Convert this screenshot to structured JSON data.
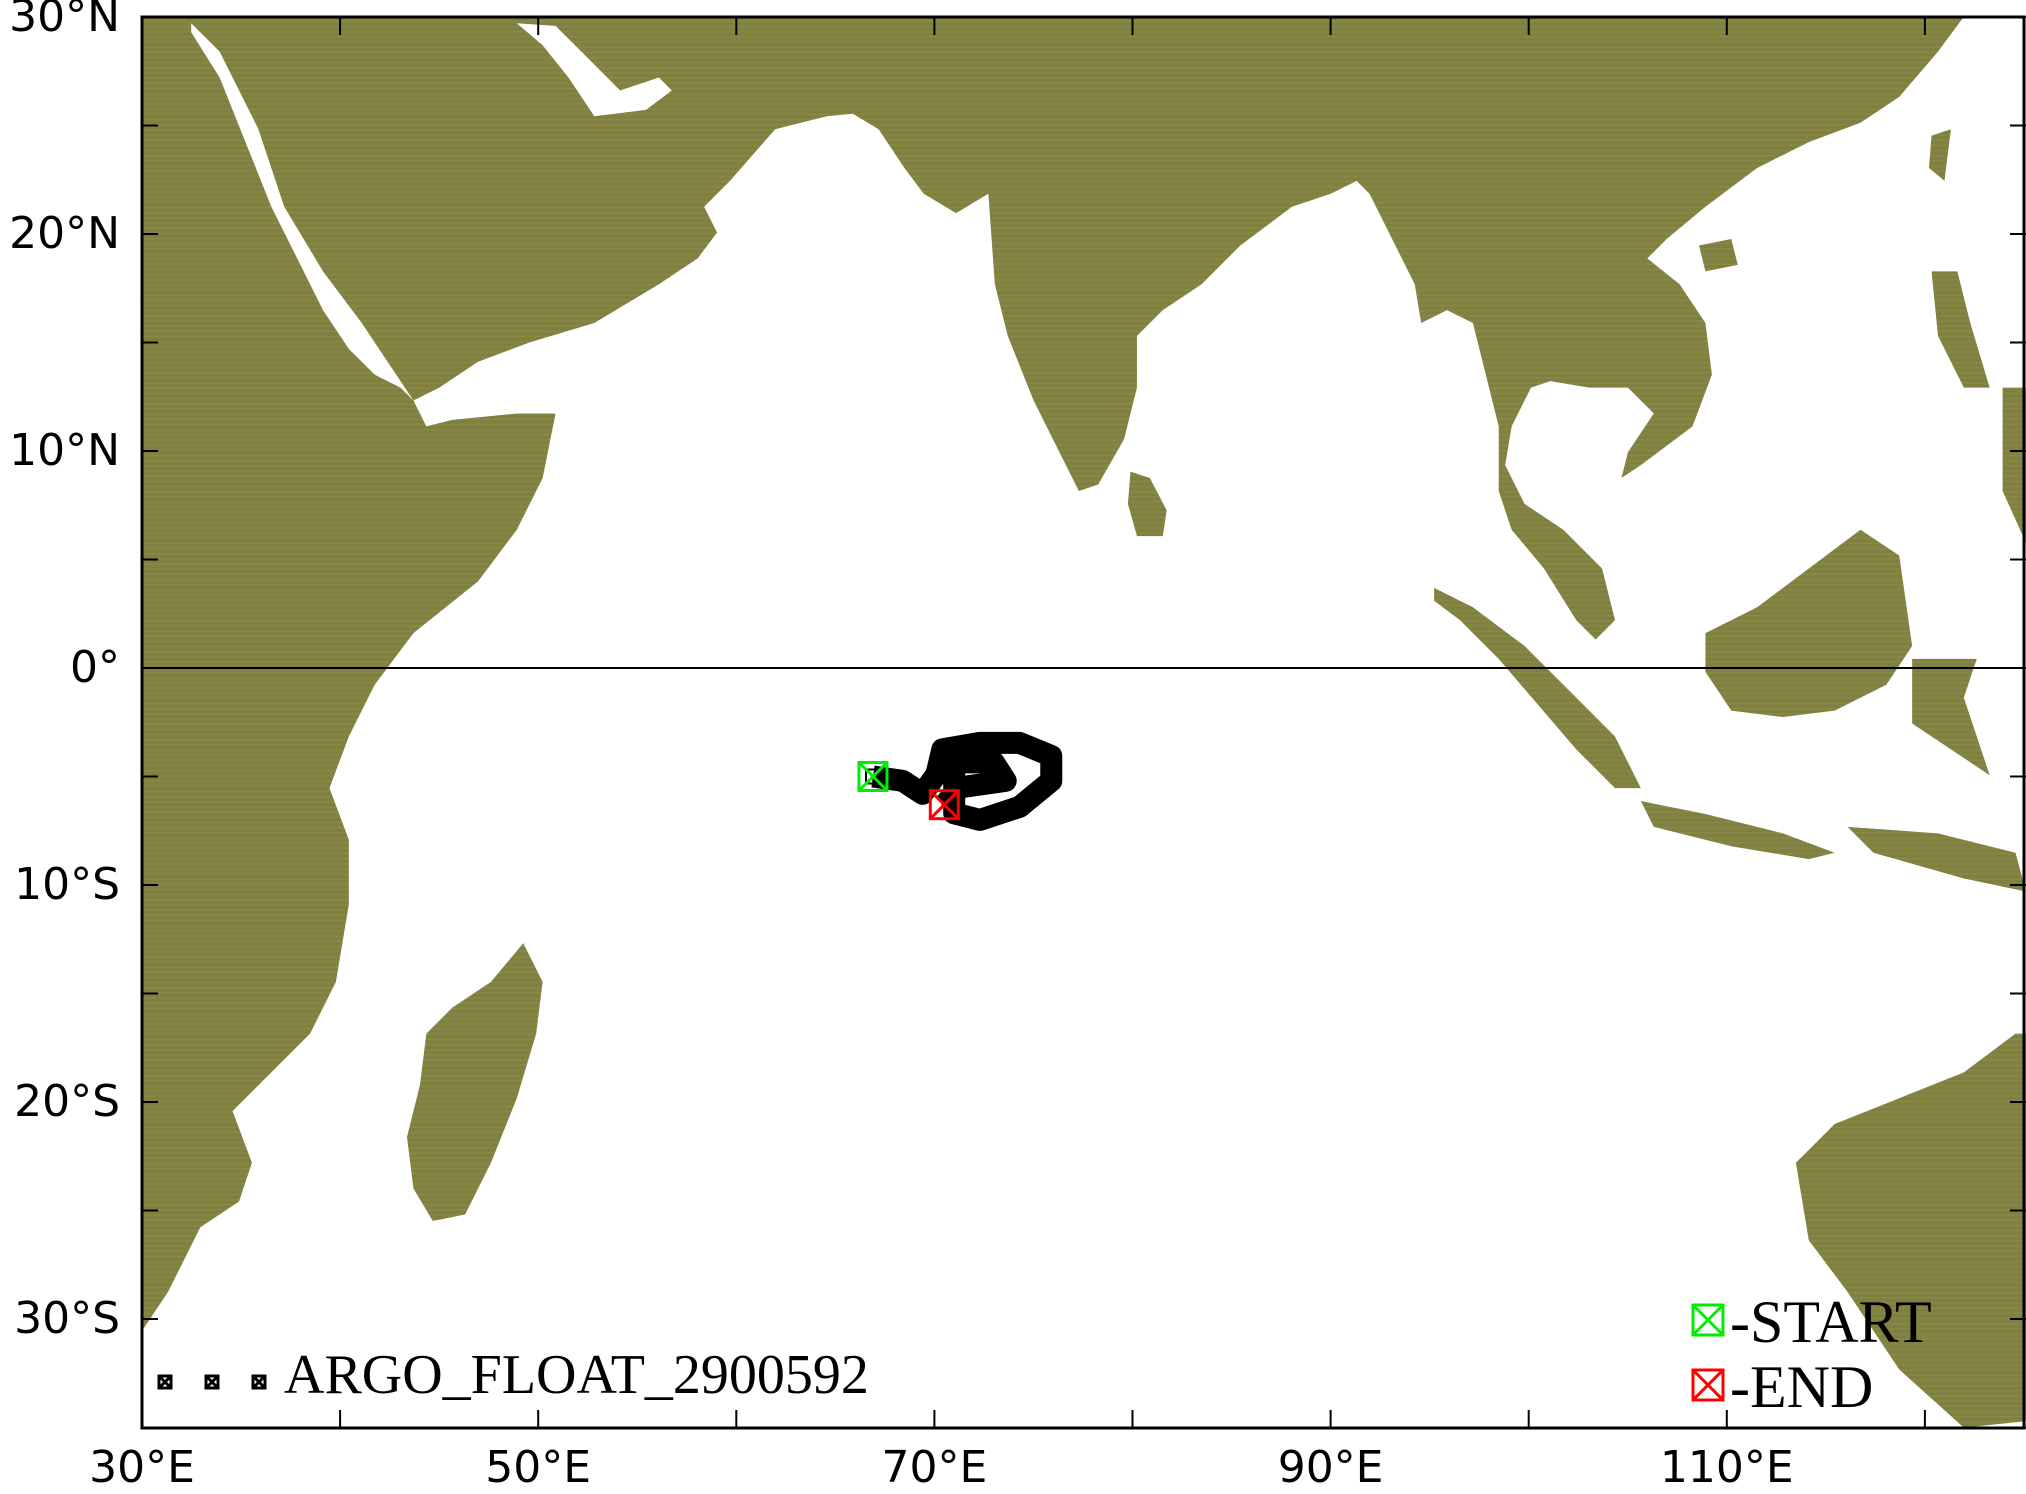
{
  "map": {
    "extent": {
      "lon": [
        30,
        125
      ],
      "lat": [
        -35,
        30
      ]
    },
    "land_color": "#808040",
    "equator_line": true,
    "lat_labels": [
      {
        "lat": 30,
        "text": "30°N"
      },
      {
        "lat": 20,
        "text": "20°N"
      },
      {
        "lat": 10,
        "text": "10°N"
      },
      {
        "lat": 0,
        "text": "0°"
      },
      {
        "lat": -10,
        "text": "10°S"
      },
      {
        "lat": -20,
        "text": "20°S"
      },
      {
        "lat": -30,
        "text": "30°S"
      }
    ],
    "lon_labels": [
      {
        "lon": 30,
        "text": "30°E"
      },
      {
        "lon": 50,
        "text": "50°E"
      },
      {
        "lon": 70,
        "text": "70°E"
      },
      {
        "lon": 90,
        "text": "90°E"
      },
      {
        "lon": 110,
        "text": "110°E"
      }
    ]
  },
  "chart_data": {
    "type": "scatter",
    "series": [
      {
        "name": "ARGO_FLOAT_2900592",
        "color": "#000000",
        "marker": "boxed-x",
        "points": [
          [
            66.9,
            -5.0
          ],
          [
            68.4,
            -5.2
          ],
          [
            69.4,
            -5.8
          ],
          [
            70.1,
            -4.9
          ],
          [
            70.4,
            -3.75
          ],
          [
            72.3,
            -3.45
          ],
          [
            74.3,
            -3.45
          ],
          [
            75.9,
            -4.05
          ],
          [
            75.9,
            -5.2
          ],
          [
            74.3,
            -6.4
          ],
          [
            72.3,
            -7.0
          ],
          [
            71.0,
            -6.7
          ],
          [
            71.0,
            -4.35
          ],
          [
            73.0,
            -4.35
          ],
          [
            73.6,
            -5.2
          ],
          [
            71.3,
            -5.5
          ],
          [
            70.5,
            -6.3
          ]
        ]
      }
    ],
    "start": {
      "lon": 66.9,
      "lat": -5.0,
      "color": "#00ee00"
    },
    "end": {
      "lon": 70.5,
      "lat": -6.3,
      "color": "#ff0000"
    }
  },
  "legend": {
    "series_label": "ARGO_FLOAT_2900592",
    "start_label": "-START",
    "end_label": "-END"
  }
}
